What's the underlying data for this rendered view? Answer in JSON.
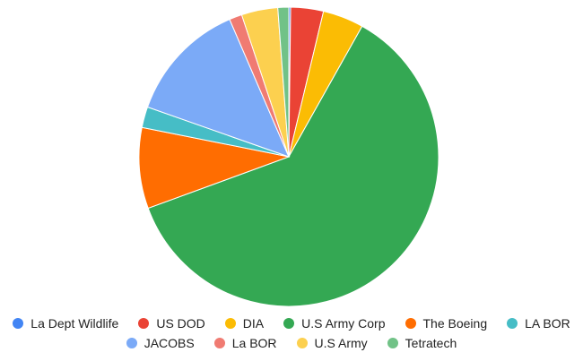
{
  "chart_data": {
    "type": "pie",
    "title": "",
    "start_angle_deg": 0,
    "direction": "clockwise",
    "legend_position": "bottom",
    "slices": [
      {
        "label": "La Dept Wildlife",
        "value": 0.2,
        "color": "#4285F4"
      },
      {
        "label": "US DOD",
        "value": 3.6,
        "color": "#EA4335"
      },
      {
        "label": "DIA",
        "value": 4.5,
        "color": "#FBBC04"
      },
      {
        "label": "U.S Army Corp",
        "value": 62.5,
        "color": "#34A853"
      },
      {
        "label": "The Boeing",
        "value": 8.9,
        "color": "#FF6D01"
      },
      {
        "label": "LA BOR",
        "value": 2.3,
        "color": "#46BDC6"
      },
      {
        "label": "JACOBS",
        "value": 13.4,
        "color": "#7BAAF7"
      },
      {
        "label": "La BOR",
        "value": 1.4,
        "color": "#F07B72"
      },
      {
        "label": "U.S Army",
        "value": 4.0,
        "color": "#FCD04F"
      },
      {
        "label": "Tetratech",
        "value": 1.2,
        "color": "#71C287"
      }
    ]
  },
  "legend": {
    "rows": [
      [
        0,
        1,
        2,
        3,
        4,
        5
      ],
      [
        6,
        7,
        8,
        9
      ]
    ]
  }
}
